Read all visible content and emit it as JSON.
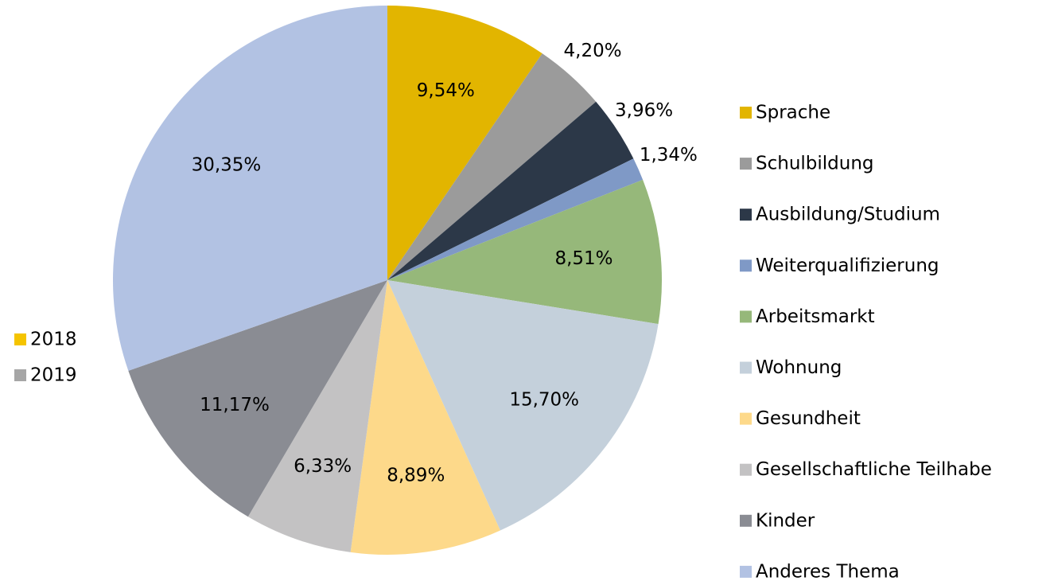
{
  "chart_data": {
    "type": "pie",
    "categories": [
      "Sprache",
      "Schulbildung",
      "Ausbildung/Studium",
      "Weiterqualifizierung",
      "Arbeitsmarkt",
      "Wohnung",
      "Gesundheit",
      "Gesellschaftliche Teilhabe",
      "Kinder",
      "Anderes Thema"
    ],
    "values": [
      9.54,
      4.2,
      3.96,
      1.34,
      8.51,
      15.7,
      8.89,
      6.33,
      11.17,
      30.35
    ],
    "value_labels": [
      "9,54%",
      "4,20%",
      "3,96%",
      "1,34%",
      "8,51%",
      "15,70%",
      "8,89%",
      "6,33%",
      "11,17%",
      "30,35%"
    ],
    "colors": [
      "#e2b500",
      "#9b9b9b",
      "#2c3848",
      "#7f99c6",
      "#96b87a",
      "#c4d0db",
      "#fdd98a",
      "#c3c2c3",
      "#8a8c93",
      "#b2c2e3"
    ],
    "legend": "right",
    "years": [
      {
        "name": "2018",
        "color": "#f5c400"
      },
      {
        "name": "2019",
        "color": "#a6a6a6"
      }
    ]
  }
}
